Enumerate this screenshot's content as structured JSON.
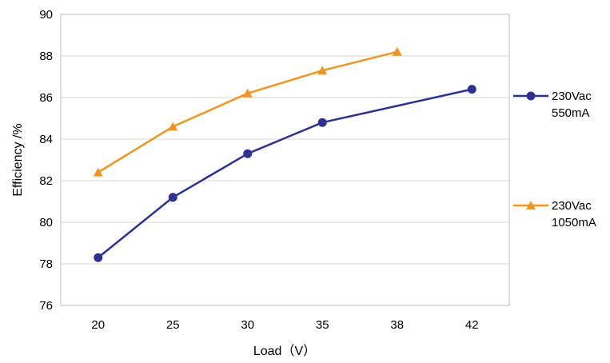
{
  "chart_data": {
    "type": "line",
    "categories": [
      "20",
      "25",
      "30",
      "35",
      "38",
      "42"
    ],
    "xlabel": "Load（V）",
    "ylabel": "Efficiency /%",
    "ylim": [
      76,
      90
    ],
    "yticks": [
      "76",
      "78",
      "80",
      "82",
      "84",
      "86",
      "88",
      "90"
    ],
    "grid": true,
    "legend_position": "right",
    "series": [
      {
        "name": "230Vac 550mA",
        "legend_lines": [
          "230Vac",
          "550mA"
        ],
        "color": "#2e3192",
        "marker": "circle",
        "points": [
          {
            "x": "20",
            "y": 78.3
          },
          {
            "x": "25",
            "y": 81.2
          },
          {
            "x": "30",
            "y": 83.3
          },
          {
            "x": "35",
            "y": 84.8
          },
          {
            "x": "42",
            "y": 86.4
          }
        ]
      },
      {
        "name": "230Vac 1050mA",
        "legend_lines": [
          "230Vac",
          "1050mA"
        ],
        "color": "#f0961e",
        "marker": "triangle",
        "points": [
          {
            "x": "20",
            "y": 82.4
          },
          {
            "x": "25",
            "y": 84.6
          },
          {
            "x": "30",
            "y": 86.2
          },
          {
            "x": "35",
            "y": 87.3
          },
          {
            "x": "38",
            "y": 88.2
          }
        ]
      }
    ]
  }
}
